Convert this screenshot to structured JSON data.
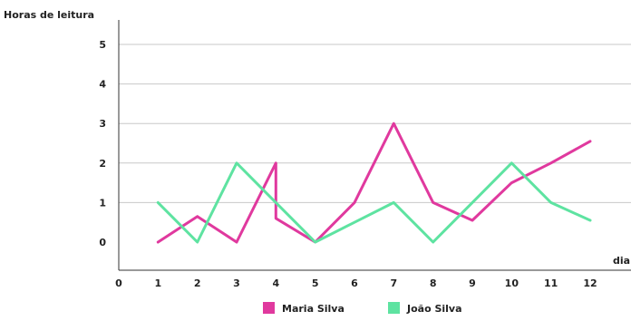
{
  "chart_data": {
    "type": "line",
    "title": "",
    "ylabel": "Horas de leitura",
    "xlabel": "dia",
    "xlim": [
      0,
      12
    ],
    "ylim": [
      0,
      5
    ],
    "x_ticks": [
      0,
      1,
      2,
      3,
      4,
      5,
      6,
      7,
      8,
      9,
      10,
      11,
      12
    ],
    "y_ticks": [
      0,
      1,
      2,
      3,
      4,
      5
    ],
    "grid": "horizontal",
    "legend_position": "bottom",
    "series": [
      {
        "name": "Maria Silva",
        "color": "#e0399e",
        "points": [
          [
            1,
            0
          ],
          [
            2,
            0.65
          ],
          [
            3,
            0
          ],
          [
            4,
            2
          ],
          [
            4,
            0.6
          ],
          [
            5,
            0
          ],
          [
            6,
            1
          ],
          [
            7,
            3
          ],
          [
            8,
            1
          ],
          [
            9,
            0.55
          ],
          [
            10,
            1.5
          ],
          [
            11,
            2
          ],
          [
            12,
            2.55
          ]
        ]
      },
      {
        "name": "João Silva",
        "color": "#5ee3a1",
        "points": [
          [
            1,
            1
          ],
          [
            2,
            0
          ],
          [
            3,
            2
          ],
          [
            4,
            1
          ],
          [
            5,
            0
          ],
          [
            6,
            0.5
          ],
          [
            7,
            1
          ],
          [
            8,
            0
          ],
          [
            9,
            1
          ],
          [
            10,
            2
          ],
          [
            11,
            1
          ],
          [
            12,
            0.55
          ]
        ]
      }
    ]
  }
}
